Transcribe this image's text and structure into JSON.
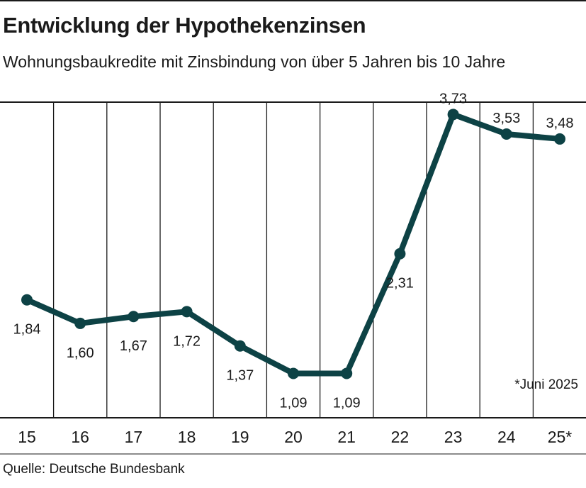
{
  "title": "Entwicklung der Hypothekenzinsen",
  "subtitle": "Wohnungsbaukredite mit Zinsbindung von über 5 Jahren bis 10 Jahre",
  "source": "Quelle: Deutsche Bundesbank",
  "note": "*Juni 2025",
  "colors": {
    "line": "#0d4245",
    "grid": "#1a1a1a"
  },
  "chart_data": {
    "type": "line",
    "title": "Entwicklung der Hypothekenzinsen",
    "subtitle": "Wohnungsbaukredite mit Zinsbindung von über 5 Jahren bis 10 Jahre",
    "categories": [
      "15",
      "16",
      "17",
      "18",
      "19",
      "20",
      "21",
      "22",
      "23",
      "24",
      "25*"
    ],
    "values": [
      1.84,
      1.6,
      1.67,
      1.72,
      1.37,
      1.09,
      1.09,
      2.31,
      3.73,
      3.53,
      3.48
    ],
    "value_labels": [
      "1,84",
      "1,60",
      "1,67",
      "1,72",
      "1,37",
      "1,09",
      "1,09",
      "2,31",
      "3,73",
      "3,53",
      "3,48"
    ],
    "label_position": [
      "below",
      "below",
      "below",
      "below",
      "below",
      "below",
      "below",
      "below",
      "above",
      "above",
      "above"
    ],
    "grid": true,
    "legend": "none"
  }
}
